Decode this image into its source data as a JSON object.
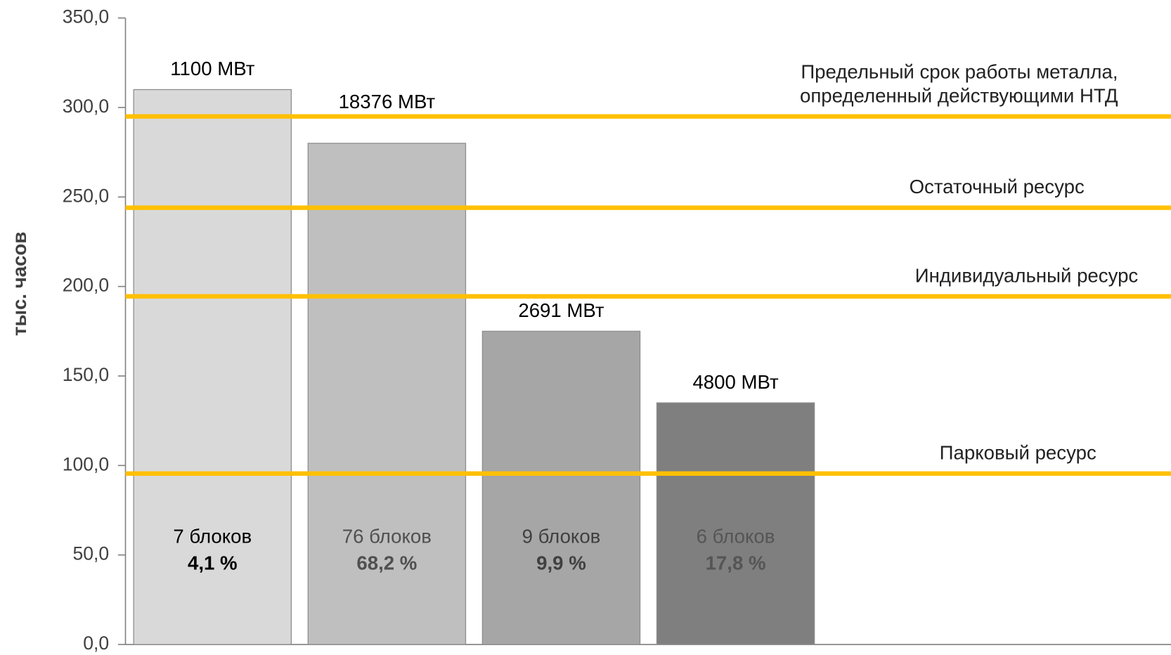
{
  "chart_data": {
    "type": "bar",
    "y_label": "тыс. часов",
    "values": [
      310,
      280,
      175,
      135
    ],
    "colors": [
      "#d9d9d9",
      "#bfbfbf",
      "#a6a6a6",
      "#7f7f7f"
    ],
    "bar_labels": [
      "1100 МВт",
      "18376 МВт",
      "2691 МВт",
      "4800 МВт"
    ],
    "block_labels": [
      "7 блоков",
      "76 блоков",
      "9 блоков",
      "6 блоков"
    ],
    "share_labels": [
      "4,1 %",
      "68,2 %",
      "9,9 %",
      "17,8 %"
    ],
    "ylim": [
      0,
      350
    ],
    "yticks": [
      {
        "value": 0,
        "label": "0,0"
      },
      {
        "value": 50,
        "label": "50,0"
      },
      {
        "value": 100,
        "label": "100,0"
      },
      {
        "value": 150,
        "label": "150,0"
      },
      {
        "value": 200,
        "label": "200,0"
      },
      {
        "value": 250,
        "label": "250,0"
      },
      {
        "value": 300,
        "label": "300,0"
      },
      {
        "value": 350,
        "label": "350,0"
      }
    ],
    "reference_lines": [
      {
        "value": 295,
        "color": "#ffc000",
        "label": [
          "Предельный срок работы металла,",
          "определенный действующими НТД"
        ]
      },
      {
        "value": 244,
        "color": "#ffc000",
        "label": [
          "Остаточный ресурс"
        ]
      },
      {
        "value": 194.5,
        "color": "#ffc000",
        "label": [
          "Индивидуальный ресурс"
        ]
      },
      {
        "value": 95.5,
        "color": "#ffc000",
        "label": [
          "Парковый ресурс"
        ]
      }
    ]
  }
}
